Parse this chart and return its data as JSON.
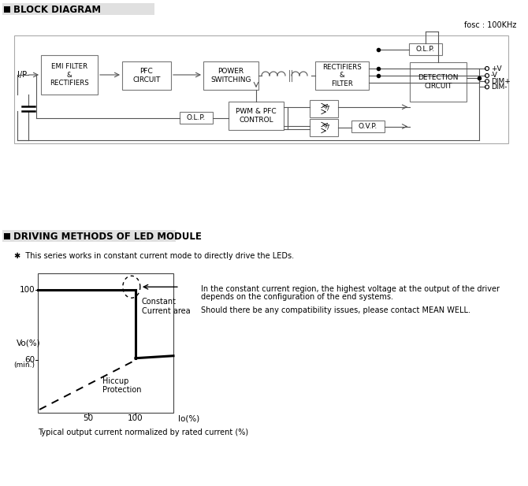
{
  "title_block": "BLOCK DIAGRAM",
  "title_driving": "DRIVING METHODS OF LED MODULE",
  "fosc_label": "fosc : 100KHz",
  "note_text": "✱  This series works in constant current mode to directly drive the LEDs.",
  "cc_text1": "In the constant current region, the highest voltage at the output of the driver",
  "cc_text2": "depends on the configuration of the end systems.",
  "cc_text3": "Should there be any compatibility issues, please contact MEAN WELL.",
  "xlabel": "Io(%)",
  "ylabel": "Vo(%)",
  "annotation_cc": "Constant\nCurrent area",
  "annotation_hp": "Hiccup\nProtection",
  "caption": "Typical output current normalized by rated current (%)",
  "bg_color": "#ffffff"
}
